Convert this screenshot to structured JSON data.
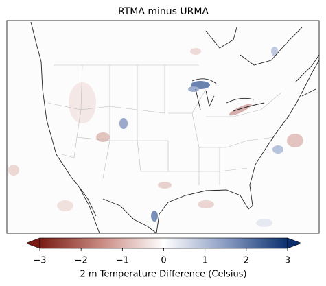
{
  "title": "RTMA minus URMA",
  "colorbar": {
    "label": "2 m Temperature Difference (Celsius)",
    "lim": [
      -3,
      3
    ],
    "ticks": [
      {
        "value": -3,
        "label": "−3"
      },
      {
        "value": -2,
        "label": "−2"
      },
      {
        "value": -1,
        "label": "−1"
      },
      0,
      1,
      2,
      3
    ],
    "colors": [
      "#7a1c16",
      "#c98a82",
      "#ffffff",
      "#8a9cc2",
      "#0b2f6e"
    ],
    "extend": "both"
  }
}
